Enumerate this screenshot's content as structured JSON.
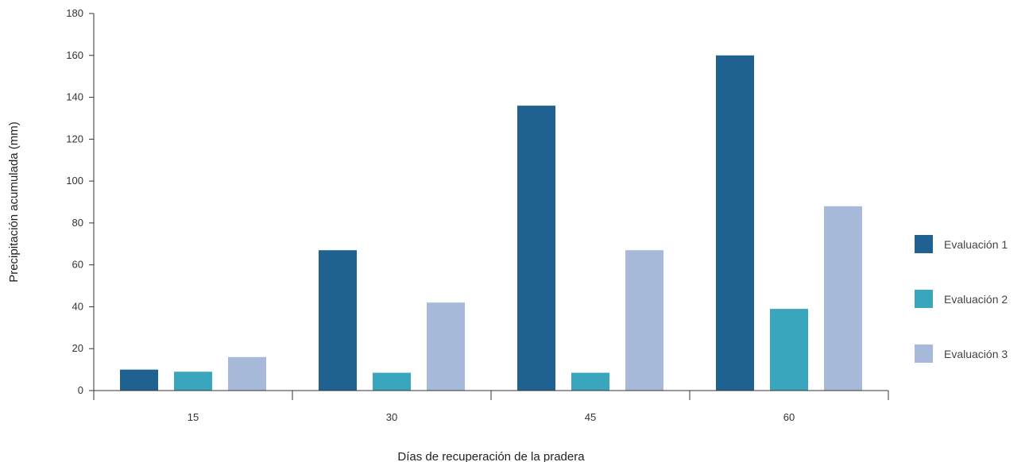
{
  "chart_data": {
    "type": "bar",
    "categories": [
      "15",
      "30",
      "45",
      "60"
    ],
    "series": [
      {
        "name": "Evaluación 1",
        "color": "#1f6191",
        "values": [
          10,
          67,
          136,
          160
        ]
      },
      {
        "name": "Evaluación 2",
        "color": "#3aa6bd",
        "values": [
          9,
          8.5,
          8.5,
          39
        ]
      },
      {
        "name": "Evaluación 3",
        "color": "#a7b9d8",
        "values": [
          16,
          42,
          67,
          88
        ]
      }
    ],
    "xlabel": "Días de recuperación de la pradera",
    "ylabel": "Precipitación acumulada (mm)",
    "ylim": [
      0,
      180
    ],
    "yticks": [
      0,
      20,
      40,
      60,
      80,
      100,
      120,
      140,
      160,
      180
    ],
    "legend_position": "right",
    "grid": false
  }
}
